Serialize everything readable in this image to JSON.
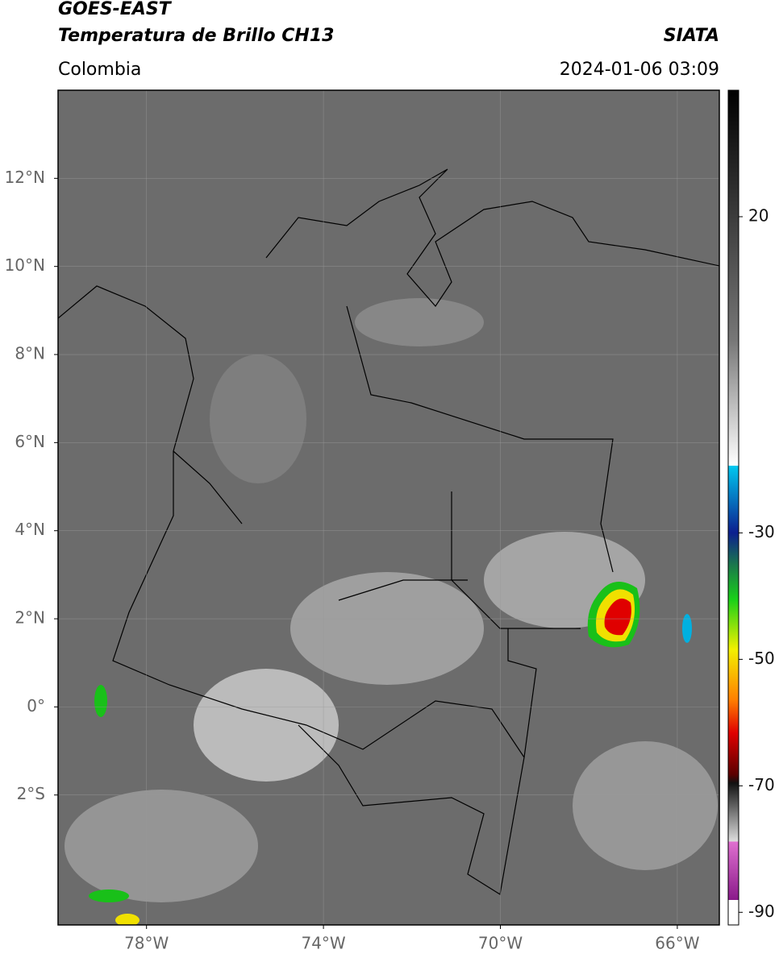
{
  "header": {
    "title_line1": "GOES-EAST",
    "title_line2": "Temperatura de Brillo CH13",
    "source": "SIATA",
    "region": "Colombia",
    "timestamp": "2024-01-06 03:09"
  },
  "map": {
    "xlim": [
      -80,
      -65.05
    ],
    "ylim": [
      -4.95,
      14
    ],
    "grid": true,
    "xticks": [
      {
        "value": -78,
        "label": "78°W"
      },
      {
        "value": -74,
        "label": "74°W"
      },
      {
        "value": -70,
        "label": "70°W"
      },
      {
        "value": -66,
        "label": "66°W"
      }
    ],
    "yticks": [
      {
        "value": 12,
        "label": "12°N"
      },
      {
        "value": 10,
        "label": "10°N"
      },
      {
        "value": 8,
        "label": "8°N"
      },
      {
        "value": 6,
        "label": "6°N"
      },
      {
        "value": 4,
        "label": "4°N"
      },
      {
        "value": 2,
        "label": "2°N"
      },
      {
        "value": 0,
        "label": "0°"
      },
      {
        "value": -2,
        "label": "2°S"
      }
    ]
  },
  "colorbar": {
    "lim": [
      -92,
      40
    ],
    "ticks": [
      20,
      -30,
      -50,
      -70,
      -90
    ]
  }
}
